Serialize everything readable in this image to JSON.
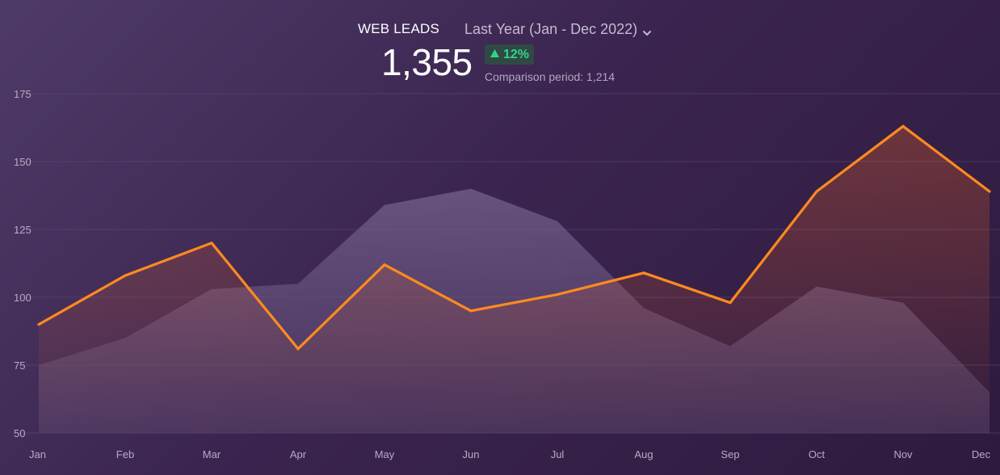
{
  "header": {
    "title": "WEB LEADS",
    "period_label": "Last Year (Jan - Dec 2022)",
    "value": "1,355",
    "delta": "12%",
    "comparison": "Comparison period: 1,214"
  },
  "colors": {
    "current_line": "#ff8a1f",
    "current_fill": "#ff6a1f",
    "comparison_fill": "#6e5a85",
    "delta_positive": "#34d38a",
    "grid": "#5a4870",
    "tick_text": "#b7aac5"
  },
  "icons": {
    "period_dropdown": "chevron-down-icon",
    "delta": "triangle-up-icon"
  },
  "chart_data": {
    "type": "area",
    "categories": [
      "Jan",
      "Feb",
      "Mar",
      "Apr",
      "May",
      "Jun",
      "Jul",
      "Aug",
      "Sep",
      "Oct",
      "Nov",
      "Dec"
    ],
    "series": [
      {
        "values": [
          90,
          108,
          120,
          81,
          112,
          95,
          101,
          109,
          98,
          139,
          163,
          139
        ]
      },
      {
        "values": [
          75,
          85,
          103,
          105,
          134,
          140,
          128,
          96,
          82,
          104,
          98,
          65
        ]
      }
    ],
    "yticks": [
      50,
      75,
      100,
      125,
      150,
      175
    ],
    "ylim": [
      50,
      175
    ],
    "grid": true,
    "xlabel": "",
    "ylabel": ""
  }
}
